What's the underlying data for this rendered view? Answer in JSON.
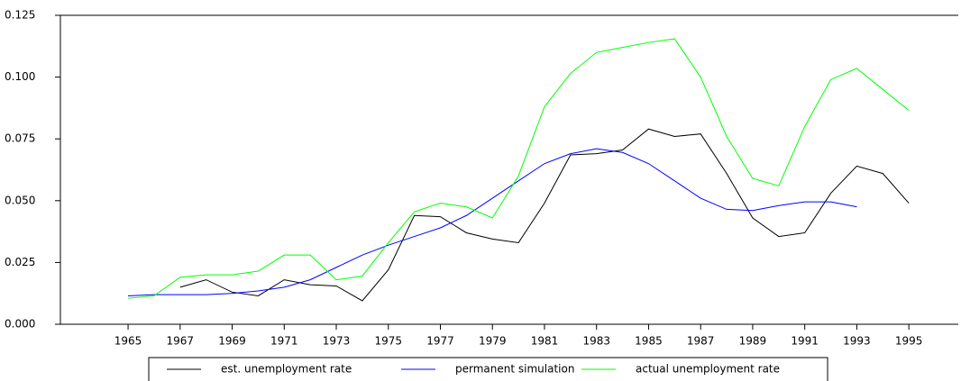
{
  "chart_data": {
    "type": "line",
    "x": [
      1965,
      1966,
      1967,
      1968,
      1969,
      1970,
      1971,
      1972,
      1973,
      1974,
      1975,
      1976,
      1977,
      1978,
      1979,
      1980,
      1981,
      1982,
      1983,
      1984,
      1985,
      1986,
      1987,
      1988,
      1989,
      1990,
      1991,
      1992,
      1993,
      1994,
      1995
    ],
    "series": [
      {
        "name": "est. unemployment rate",
        "color": "#000000",
        "values": [
          null,
          null,
          0.015,
          0.018,
          0.013,
          0.0115,
          0.018,
          0.016,
          0.0155,
          0.0095,
          0.022,
          0.044,
          0.0435,
          0.037,
          0.0345,
          0.033,
          0.049,
          0.0685,
          0.069,
          0.0705,
          0.079,
          0.076,
          0.077,
          0.061,
          0.043,
          0.0355,
          0.037,
          0.053,
          0.064,
          0.061,
          0.049
        ]
      },
      {
        "name": "permanent simulation",
        "color": "#0000ff",
        "values": [
          0.0115,
          0.012,
          0.012,
          0.012,
          0.0125,
          0.0135,
          0.015,
          0.018,
          0.023,
          0.028,
          0.032,
          0.0355,
          0.039,
          0.044,
          0.051,
          0.058,
          0.065,
          0.069,
          0.071,
          0.0695,
          0.065,
          0.058,
          0.051,
          0.0465,
          0.046,
          0.048,
          0.0495,
          0.0495,
          0.0475,
          null,
          null
        ]
      },
      {
        "name": "actual unemployment rate",
        "color": "#00ff00",
        "values": [
          0.0105,
          0.0115,
          0.019,
          0.02,
          0.02,
          0.0215,
          0.028,
          0.028,
          0.018,
          0.0195,
          0.033,
          0.0455,
          0.049,
          0.0475,
          0.043,
          0.06,
          0.088,
          0.1015,
          0.11,
          0.112,
          0.114,
          0.1155,
          0.1,
          0.076,
          0.059,
          0.056,
          0.08,
          0.099,
          0.1035,
          0.095,
          0.0865
        ]
      }
    ],
    "xlim": [
      1962.4,
      1996.9
    ],
    "xticks": [
      1965,
      1967,
      1969,
      1971,
      1973,
      1975,
      1977,
      1979,
      1981,
      1983,
      1985,
      1987,
      1989,
      1991,
      1993,
      1995
    ],
    "ylim": [
      0,
      0.125
    ],
    "yticks": [
      {
        "value": 0,
        "label": "0.000"
      },
      {
        "value": 0.025,
        "label": "0.025"
      },
      {
        "value": 0.05,
        "label": "0.050"
      },
      {
        "value": 0.075,
        "label": "0.075"
      },
      {
        "value": 0.1,
        "label": "0.100"
      },
      {
        "value": 0.125,
        "label": "0.125"
      }
    ],
    "legend": "bottom"
  }
}
